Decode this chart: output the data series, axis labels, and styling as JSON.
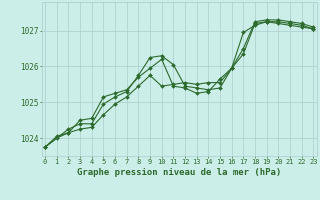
{
  "title": "Graphe pression niveau de la mer (hPa)",
  "bg_color": "#cceee8",
  "grid_color": "#aacccc",
  "line_color": "#2d6a2d",
  "x_ticks": [
    0,
    1,
    2,
    3,
    4,
    5,
    6,
    7,
    8,
    9,
    10,
    11,
    12,
    13,
    14,
    15,
    16,
    17,
    18,
    19,
    20,
    21,
    22,
    23
  ],
  "y_ticks": [
    1024,
    1025,
    1026,
    1027
  ],
  "ylim": [
    1023.5,
    1027.8
  ],
  "xlim": [
    -0.3,
    23.3
  ],
  "line1_x": [
    0,
    1,
    2,
    3,
    4,
    5,
    6,
    7,
    8,
    9,
    10,
    11,
    12,
    13,
    14,
    15,
    16,
    17,
    18,
    19,
    20,
    21,
    22,
    23
  ],
  "line1_y": [
    1023.75,
    1024.05,
    1024.15,
    1024.25,
    1024.3,
    1024.65,
    1024.95,
    1025.15,
    1025.45,
    1025.75,
    1025.45,
    1025.5,
    1025.55,
    1025.5,
    1025.55,
    1025.55,
    1025.95,
    1026.95,
    1027.15,
    1027.25,
    1027.2,
    1027.15,
    1027.1,
    1027.05
  ],
  "line2_x": [
    0,
    1,
    2,
    3,
    4,
    5,
    6,
    7,
    8,
    9,
    10,
    11,
    12,
    13,
    14,
    15,
    16,
    17,
    18,
    19,
    20,
    21,
    22,
    23
  ],
  "line2_y": [
    1023.75,
    1024.0,
    1024.15,
    1024.5,
    1024.55,
    1025.15,
    1025.25,
    1025.35,
    1025.7,
    1025.95,
    1026.2,
    1025.45,
    1025.4,
    1025.25,
    1025.3,
    1025.65,
    1025.95,
    1026.35,
    1027.2,
    1027.25,
    1027.25,
    1027.2,
    1027.15,
    1027.05
  ],
  "line3_x": [
    0,
    2,
    3,
    4,
    5,
    6,
    7,
    8,
    9,
    10,
    11,
    12,
    13,
    14,
    15,
    16,
    17,
    18,
    19,
    20,
    21,
    22,
    23
  ],
  "line3_y": [
    1023.75,
    1024.25,
    1024.4,
    1024.4,
    1024.95,
    1025.15,
    1025.3,
    1025.75,
    1026.25,
    1026.3,
    1026.05,
    1025.45,
    1025.4,
    1025.35,
    1025.4,
    1025.95,
    1026.5,
    1027.25,
    1027.3,
    1027.3,
    1027.25,
    1027.2,
    1027.1
  ],
  "marker": "D",
  "markersize": 2.0,
  "linewidth": 0.8,
  "tick_fontsize": 5.0,
  "label_fontsize": 6.5
}
